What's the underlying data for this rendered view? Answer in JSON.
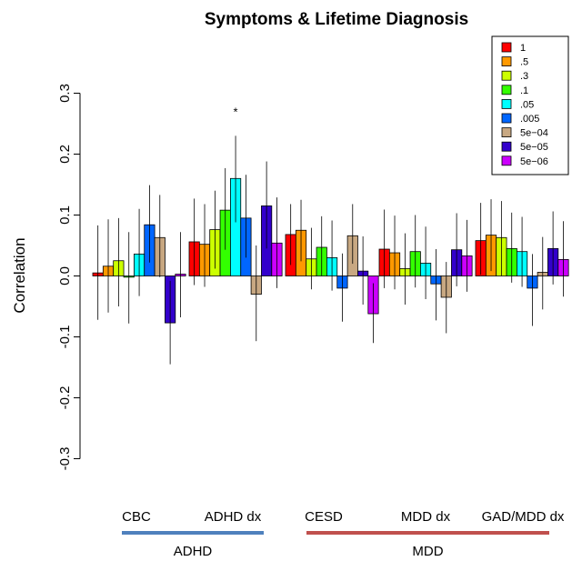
{
  "chart_data": {
    "type": "bar",
    "title": "Symptoms & Lifetime Diagnosis",
    "xlabel": "",
    "ylabel": "Correlation",
    "ylim": [
      -0.3,
      0.3
    ],
    "yticks": [
      "-0.3",
      "-0.2",
      "-0.1",
      "0.0",
      "0.1",
      "0.2",
      "0.3"
    ],
    "grid": false,
    "legend_position": "top-right",
    "categories": [
      "CBC",
      "ADHD dx",
      "CESD",
      "MDD dx",
      "GAD/MDD dx"
    ],
    "groups": [
      {
        "label": "ADHD",
        "color": "#4f81bd",
        "categories": [
          "CBC",
          "ADHD dx"
        ]
      },
      {
        "label": "MDD",
        "color": "#c0504d",
        "categories": [
          "CESD",
          "MDD dx",
          "GAD/MDD dx"
        ]
      }
    ],
    "series": [
      {
        "name": "1",
        "color": "#ff0000",
        "values": [
          0.005,
          0.056,
          0.068,
          0.044,
          0.058
        ],
        "err_low": [
          -0.072,
          -0.015,
          0.018,
          -0.02,
          0.002
        ],
        "err_high": [
          0.083,
          0.127,
          0.118,
          0.109,
          0.12
        ]
      },
      {
        "name": ".5",
        "color": "#ff9900",
        "values": [
          0.016,
          0.052,
          0.075,
          0.038,
          0.067
        ],
        "err_low": [
          -0.06,
          -0.018,
          0.024,
          -0.022,
          0.008
        ],
        "err_high": [
          0.093,
          0.118,
          0.125,
          0.099,
          0.126
        ]
      },
      {
        "name": ".3",
        "color": "#ccff00",
        "values": [
          0.025,
          0.076,
          0.028,
          0.012,
          0.063
        ],
        "err_low": [
          -0.05,
          0.012,
          -0.022,
          -0.047,
          0.0
        ],
        "err_high": [
          0.095,
          0.14,
          0.079,
          0.07,
          0.123
        ]
      },
      {
        "name": ".1",
        "color": "#33ff00",
        "values": [
          -0.002,
          0.108,
          0.047,
          0.04,
          0.045
        ],
        "err_low": [
          -0.078,
          0.043,
          0.0,
          -0.019,
          -0.011
        ],
        "err_high": [
          0.072,
          0.177,
          0.098,
          0.1,
          0.104
        ]
      },
      {
        "name": ".05",
        "color": "#00ffff",
        "values": [
          0.036,
          0.16,
          0.03,
          0.021,
          0.04
        ],
        "err_low": [
          -0.033,
          0.088,
          -0.024,
          -0.038,
          -0.018
        ],
        "err_high": [
          0.11,
          0.23,
          0.091,
          0.081,
          0.097
        ]
      },
      {
        "name": ".005",
        "color": "#0066ff",
        "values": [
          0.084,
          0.095,
          -0.02,
          -0.013,
          -0.02
        ],
        "err_low": [
          0.022,
          0.03,
          -0.075,
          -0.073,
          -0.082
        ],
        "err_high": [
          0.149,
          0.166,
          0.037,
          0.044,
          0.036
        ]
      },
      {
        "name": "5e−04",
        "color": "#c8a882",
        "values": [
          0.063,
          -0.03,
          0.066,
          -0.035,
          0.006
        ],
        "err_low": [
          -0.002,
          -0.107,
          0.02,
          -0.094,
          -0.055
        ],
        "err_high": [
          0.133,
          0.05,
          0.118,
          0.023,
          0.064
        ]
      },
      {
        "name": "5e−05",
        "color": "#3300cc",
        "values": [
          -0.077,
          0.115,
          0.008,
          0.043,
          0.045
        ],
        "err_low": [
          -0.145,
          0.045,
          -0.047,
          -0.017,
          -0.014
        ],
        "err_high": [
          -0.008,
          0.188,
          0.065,
          0.103,
          0.106
        ]
      },
      {
        "name": "5e−06",
        "color": "#cc00ff",
        "values": [
          0.003,
          0.054,
          -0.062,
          0.033,
          0.027
        ],
        "err_low": [
          -0.068,
          -0.02,
          -0.11,
          -0.026,
          -0.034
        ],
        "err_high": [
          0.072,
          0.129,
          -0.012,
          0.092,
          0.09
        ]
      }
    ],
    "annotations": [
      {
        "text": "*",
        "category": "ADHD dx",
        "series": ".05",
        "y": 0.275
      }
    ]
  }
}
